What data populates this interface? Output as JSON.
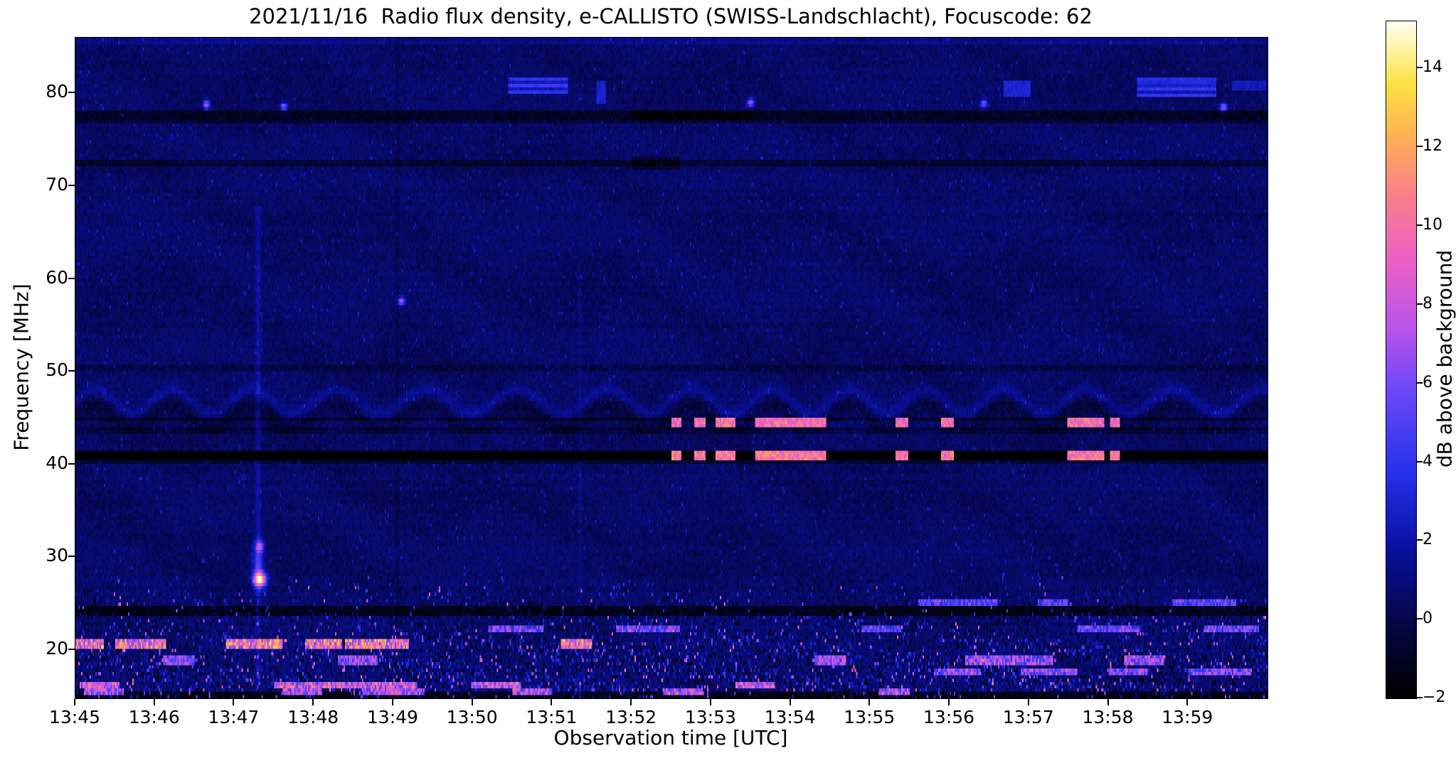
{
  "chart_data": {
    "type": "heatmap",
    "title": "2021/11/16  Radio flux density, e-CALLISTO (SWISS-Landschlacht), Focuscode: 62",
    "xlabel": "Observation time [UTC]",
    "ylabel": "Frequency [MHz]",
    "x_ticks": [
      "13:45",
      "13:46",
      "13:47",
      "13:48",
      "13:49",
      "13:50",
      "13:51",
      "13:52",
      "13:53",
      "13:54",
      "13:55",
      "13:56",
      "13:57",
      "13:58",
      "13:59"
    ],
    "x_range_minutes": [
      0,
      15
    ],
    "y_ticks": [
      "80",
      "70",
      "60",
      "50",
      "40",
      "30",
      "20"
    ],
    "y_tick_values": [
      80,
      70,
      60,
      50,
      40,
      30,
      20
    ],
    "freq_range_mhz": [
      14.8,
      86.0
    ],
    "grid": false,
    "background_db": 0.5,
    "colorbar": {
      "label": "dB above background",
      "tick_labels": [
        "14",
        "12",
        "10",
        "8",
        "6",
        "4",
        "2",
        "0",
        "−2"
      ],
      "tick_values": [
        14,
        12,
        10,
        8,
        6,
        4,
        2,
        0,
        -2
      ],
      "range": [
        -2,
        15.2
      ],
      "colormap": "gnuplot2-like",
      "stops": [
        [
          0.0,
          [
            0,
            0,
            0
          ]
        ],
        [
          0.1,
          [
            5,
            5,
            62
          ]
        ],
        [
          0.22,
          [
            10,
            16,
            160
          ]
        ],
        [
          0.33,
          [
            36,
            48,
            234
          ]
        ],
        [
          0.45,
          [
            106,
            72,
            250
          ]
        ],
        [
          0.55,
          [
            186,
            85,
            234
          ]
        ],
        [
          0.65,
          [
            236,
            96,
            196
          ]
        ],
        [
          0.75,
          [
            250,
            130,
            134
          ]
        ],
        [
          0.83,
          [
            253,
            176,
            86
          ]
        ],
        [
          0.91,
          [
            253,
            226,
            66
          ]
        ],
        [
          1.0,
          [
            255,
            255,
            240
          ]
        ]
      ]
    },
    "features": {
      "low_freq_noise_band": {
        "top_mhz": 28.2,
        "description": "strong broadband noise and speckle below ~28 MHz"
      },
      "horizontal_lines": [
        {
          "f_mhz": 85.6,
          "half_width_mhz": 0.3,
          "delta_db": 0.7
        },
        {
          "f_mhz": 77.6,
          "half_width_mhz": 0.45,
          "delta_db": -1.6
        },
        {
          "f_mhz": 76.9,
          "half_width_mhz": 0.25,
          "delta_db": -0.8
        },
        {
          "f_mhz": 72.5,
          "half_width_mhz": 0.3,
          "delta_db": -1.1
        },
        {
          "f_mhz": 50.4,
          "half_width_mhz": 0.25,
          "delta_db": -0.7
        },
        {
          "f_mhz": 44.9,
          "half_width_mhz": 0.22,
          "delta_db": -1.0
        },
        {
          "f_mhz": 43.6,
          "half_width_mhz": 0.22,
          "delta_db": -0.7
        },
        {
          "f_mhz": 41.0,
          "half_width_mhz": 0.55,
          "delta_db": -4.0
        },
        {
          "f_mhz": 40.2,
          "half_width_mhz": 0.2,
          "delta_db": -1.1
        },
        {
          "f_mhz": 24.3,
          "half_width_mhz": 0.45,
          "delta_db": -2.0
        },
        {
          "f_mhz": 15.1,
          "half_width_mhz": 0.4,
          "delta_db": -2.2
        }
      ],
      "wavy_interference_band": {
        "f_min_mhz": 43.3,
        "f_max_mhz": 49.6,
        "center_mhz": 46.8,
        "amplitude_mhz": 1.3,
        "period_min": 1.05,
        "sigma_mhz": 0.5,
        "delta_db": 1.1,
        "shadow_delta_db": -0.7
      },
      "vertical_lines": [
        {
          "t_min": 2.3,
          "half_width_min": 0.05,
          "delta_db": 1.6,
          "f_max_mhz": 68
        },
        {
          "t_min": 4.05,
          "half_width_min": 0.035,
          "delta_db": -0.55
        },
        {
          "t_min": 6.35,
          "half_width_min": 0.03,
          "delta_db": 0.7,
          "f_max_mhz": 62
        }
      ],
      "dash_segments_min": [
        [
          7.5,
          7.62
        ],
        [
          7.78,
          7.92
        ],
        [
          8.05,
          8.3
        ],
        [
          8.55,
          9.45
        ],
        [
          10.32,
          10.48
        ],
        [
          10.9,
          11.05
        ],
        [
          12.48,
          12.95
        ],
        [
          13.02,
          13.15
        ]
      ],
      "bright_dash_rows": [
        {
          "f_mhz": 41.0,
          "half_width_mhz": 0.5,
          "db": 8.5
        },
        {
          "f_mhz": 44.6,
          "half_width_mhz": 0.45,
          "db": 8.0
        }
      ],
      "burst_blobs": [
        {
          "t_min": 2.32,
          "f_mhz": 27.6,
          "sigma_t_min": 0.055,
          "sigma_f_mhz": 0.55,
          "db": 13
        },
        {
          "t_min": 2.32,
          "f_mhz": 31.2,
          "sigma_t_min": 0.035,
          "sigma_f_mhz": 0.4,
          "db": 6
        },
        {
          "t_min": 2.3,
          "f_mhz": 29.4,
          "sigma_t_min": 0.05,
          "sigma_f_mhz": 1.6,
          "db": 3.5
        }
      ],
      "dark_patches": [
        {
          "t0_min": 7.0,
          "t1_min": 7.6,
          "f0_mhz": 71.8,
          "f1_mhz": 73.2,
          "delta_db": -1.1
        },
        {
          "t0_min": 7.0,
          "t1_min": 8.6,
          "f0_mhz": 77.0,
          "f1_mhz": 78.3,
          "delta_db": -0.9
        }
      ],
      "high_freq_patches": [
        {
          "t0_min": 5.45,
          "t1_min": 6.2,
          "f0_mhz": 79.8,
          "f1_mhz": 81.6,
          "db": 3.2,
          "striped": true
        },
        {
          "t0_min": 6.55,
          "t1_min": 6.68,
          "f0_mhz": 79.0,
          "f1_mhz": 81.4,
          "db": 2.8,
          "striped": false
        },
        {
          "t0_min": 11.68,
          "t1_min": 12.02,
          "f0_mhz": 79.6,
          "f1_mhz": 81.5,
          "db": 3.0,
          "striped": false
        },
        {
          "t0_min": 13.35,
          "t1_min": 14.35,
          "f0_mhz": 79.5,
          "f1_mhz": 81.8,
          "db": 3.2,
          "striped": true
        },
        {
          "t0_min": 14.55,
          "t1_min": 14.98,
          "f0_mhz": 80.3,
          "f1_mhz": 81.3,
          "db": 2.4,
          "striped": false
        }
      ],
      "point_sources": [
        {
          "t_min": 1.65,
          "f_mhz": 78.8,
          "db": 7
        },
        {
          "t_min": 2.62,
          "f_mhz": 78.6,
          "db": 6
        },
        {
          "t_min": 8.5,
          "f_mhz": 79.0,
          "db": 7
        },
        {
          "t_min": 11.43,
          "f_mhz": 78.9,
          "db": 6
        },
        {
          "t_min": 14.45,
          "f_mhz": 78.5,
          "db": 7
        },
        {
          "t_min": 4.1,
          "f_mhz": 57.6,
          "db": 6
        }
      ],
      "noise_streaks": [
        {
          "f_mhz": 20.8,
          "half_width_mhz": 0.55,
          "db": 9.5,
          "segments_min": [
            [
              0.0,
              0.35
            ],
            [
              0.5,
              1.15
            ],
            [
              1.9,
              2.6
            ],
            [
              2.9,
              3.35
            ],
            [
              3.4,
              4.2
            ],
            [
              6.1,
              6.5
            ]
          ]
        },
        {
          "f_mhz": 16.3,
          "half_width_mhz": 0.45,
          "db": 8.0,
          "segments_min": [
            [
              0.05,
              0.55
            ],
            [
              2.5,
              4.3
            ],
            [
              5.0,
              5.6
            ],
            [
              8.3,
              8.8
            ]
          ]
        },
        {
          "f_mhz": 18.9,
          "half_width_mhz": 0.4,
          "db": 6.5,
          "segments_min": [
            [
              1.1,
              1.5
            ],
            [
              3.3,
              3.8
            ],
            [
              9.3,
              9.7
            ],
            [
              11.2,
              12.3
            ],
            [
              13.2,
              13.7
            ]
          ]
        },
        {
          "f_mhz": 22.3,
          "half_width_mhz": 0.4,
          "db": 5.5,
          "segments_min": [
            [
              5.2,
              5.9
            ],
            [
              6.8,
              7.6
            ],
            [
              9.9,
              10.4
            ],
            [
              12.6,
              13.4
            ],
            [
              14.2,
              14.9
            ]
          ]
        },
        {
          "f_mhz": 25.0,
          "half_width_mhz": 0.4,
          "db": 5.0,
          "segments_min": [
            [
              10.6,
              11.6
            ],
            [
              12.1,
              12.5
            ],
            [
              13.8,
              14.6
            ]
          ]
        },
        {
          "f_mhz": 15.4,
          "half_width_mhz": 0.35,
          "db": 7.0,
          "segments_min": [
            [
              0.1,
              0.6
            ],
            [
              2.6,
              3.1
            ],
            [
              3.6,
              4.4
            ],
            [
              5.5,
              6.0
            ],
            [
              7.4,
              7.9
            ],
            [
              10.1,
              10.5
            ]
          ]
        },
        {
          "f_mhz": 17.6,
          "half_width_mhz": 0.4,
          "db": 6.0,
          "segments_min": [
            [
              10.8,
              11.4
            ],
            [
              11.9,
              12.6
            ],
            [
              13.0,
              13.5
            ],
            [
              14.0,
              14.8
            ]
          ]
        }
      ]
    }
  }
}
